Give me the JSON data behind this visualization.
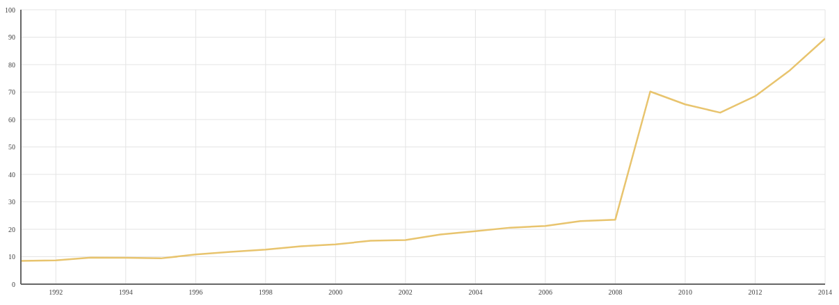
{
  "chart_data": {
    "type": "line",
    "x": [
      1991,
      1992,
      1993,
      1994,
      1995,
      1996,
      1997,
      1998,
      1999,
      2000,
      2001,
      2002,
      2003,
      2004,
      2005,
      2006,
      2007,
      2008,
      2009,
      2010,
      2011,
      2012,
      2013,
      2014
    ],
    "series": [
      {
        "color": "#e8c46e",
        "values": [
          8.5,
          8.7,
          9.7,
          9.6,
          9.4,
          10.8,
          11.8,
          12.6,
          13.8,
          14.5,
          15.8,
          16.1,
          18.1,
          19.3,
          20.6,
          21.2,
          23.0,
          23.5,
          70.2,
          65.5,
          62.5,
          68.5,
          78,
          89.5
        ]
      }
    ],
    "xlim": [
      1991,
      2014
    ],
    "xticks": [
      1992,
      1994,
      1996,
      1998,
      2000,
      2002,
      2004,
      2006,
      2008,
      2010,
      2012,
      2014
    ],
    "ylim": [
      0,
      100
    ],
    "yticks": [
      0,
      10,
      20,
      30,
      40,
      50,
      60,
      70,
      80,
      90,
      100
    ],
    "grid": true,
    "marker": "none",
    "line_style": "solid"
  }
}
